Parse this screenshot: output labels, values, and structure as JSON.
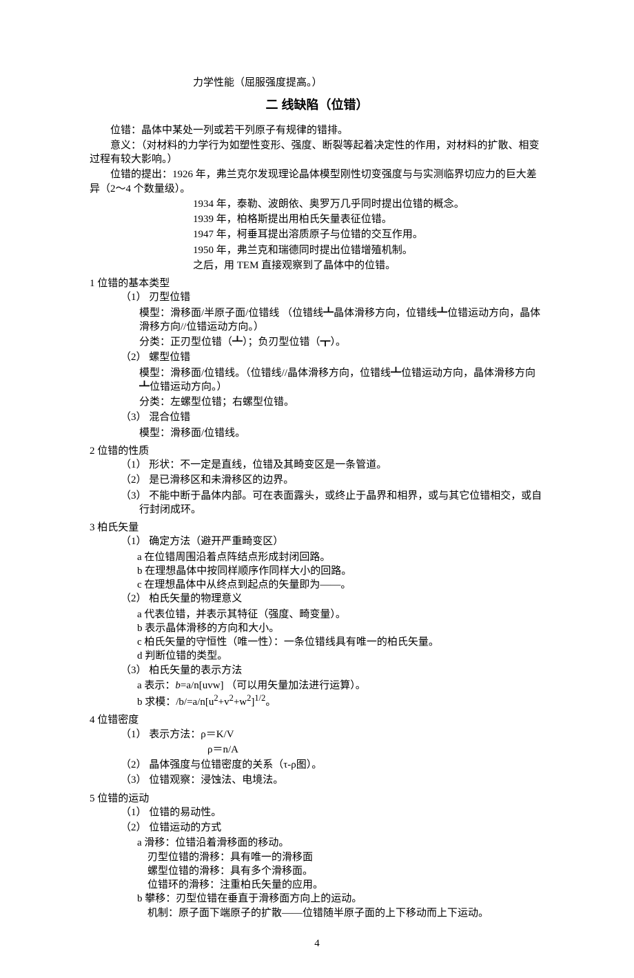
{
  "top_line": "力学性能（屈服强度提高。）",
  "heading": "二 线缺陷（位错）",
  "intro": {
    "p1": "位错：晶体中某处一列或若干列原子有规律的错排。",
    "p2": "意义：（对材料的力学行为如塑性变形、强度、断裂等起着决定性的作用，对材料的扩散、相变过程有较大影响。）",
    "p3": "位错的提出：1926 年，弗兰克尔发现理论晶体模型刚性切变强度与与实测临界切应力的巨大差异（2～4 个数量级）。"
  },
  "timeline": {
    "t1": "1934 年，泰勒、波朗依、奥罗万几乎同时提出位错的概念。",
    "t2": "1939 年，柏格斯提出用柏氏矢量表征位错。",
    "t3": "1947 年，柯垂耳提出溶质原子与位错的交互作用。",
    "t4": "1950 年，弗兰克和瑞德同时提出位错增殖机制。",
    "t5": "之后，用 TEM 直接观察到了晶体中的位错。"
  },
  "s1": {
    "title": "1 位错的基本类型",
    "i1_label": "（1） 刃型位错",
    "i1_a": "模型：滑移面/半原子面/位错线 （位错线┻晶体滑移方向，位错线┻位错运动方向，晶体滑移方向//位错运动方向。）",
    "i1_b": "分类：正刃型位错（┻）；负刃型位错（┳）。",
    "i2_label": "（2） 螺型位错",
    "i2_a": "模型：滑移面/位错线。（位错线//晶体滑移方向，位错线┻位错运动方向，晶体滑移方向┻位错运动方向。）",
    "i2_b": "分类：左螺型位错；右螺型位错。",
    "i3_label": "（3） 混合位错",
    "i3_a": "模型：滑移面/位错线。"
  },
  "s2": {
    "title": "2 位错的性质",
    "i1": "（1） 形状：不一定是直线，位错及其畸变区是一条管道。",
    "i2": "（2） 是已滑移区和未滑移区的边界。",
    "i3": "（3） 不能中断于晶体内部。可在表面露头，或终止于晶界和相界，或与其它位错相交，或自行封闭成环。"
  },
  "s3": {
    "title": "3 柏氏矢量",
    "i1_label": "（1） 确定方法（避开严重畸变区）",
    "i1_a": "a 在位错周围沿着点阵结点形成封闭回路。",
    "i1_b": "b 在理想晶体中按同样顺序作同样大小的回路。",
    "i1_c": "c 在理想晶体中从终点到起点的矢量即为――。",
    "i2_label": "（2） 柏氏矢量的物理意义",
    "i2_a": "a 代表位错，并表示其特征（强度、畸变量）。",
    "i2_b": "b 表示晶体滑移的方向和大小。",
    "i2_c": "c 柏氏矢量的守恒性（唯一性）：一条位错线具有唯一的柏氏矢量。",
    "i2_d": "d 判断位错的类型。",
    "i3_label": "（3） 柏氏矢量的表示方法",
    "i3_a_pre": "a 表示：",
    "i3_a_b": "b",
    "i3_a_post": "=a/n[uvw] （可以用矢量加法进行运算）。",
    "i3_b_pre": "b 求模：/b/=a/n[u",
    "i3_b_sup1": "2",
    "i3_b_mid1": "+v",
    "i3_b_sup2": "2",
    "i3_b_mid2": "+w",
    "i3_b_sup3": "2",
    "i3_b_mid3": "]",
    "i3_b_sup4": "1/2",
    "i3_b_post": "。"
  },
  "s4": {
    "title": "4 位错密度",
    "i1": "（1） 表示方法：ρ＝K/V",
    "i1b": "ρ＝n/A",
    "i2": "（2） 晶体强度与位错密度的关系（τ-ρ图）。",
    "i3": "（3） 位错观察：浸蚀法、电境法。"
  },
  "s5": {
    "title": "5 位错的运动",
    "i1": "（1） 位错的易动性。",
    "i2_label": "（2） 位错运动的方式",
    "i2_a1": "a 滑移：位错沿着滑移面的移动。",
    "i2_a2": "刃型位错的滑移：具有唯一的滑移面",
    "i2_a3": "螺型位错的滑移：具有多个滑移面。",
    "i2_a4": "位错环的滑移：注重柏氏矢量的应用。",
    "i2_b1": "b 攀移：刃型位错在垂直于滑移面方向上的运动。",
    "i2_b2": "机制：原子面下端原子的扩散――位错随半原子面的上下移动而上下运动。"
  },
  "page_number": "4"
}
